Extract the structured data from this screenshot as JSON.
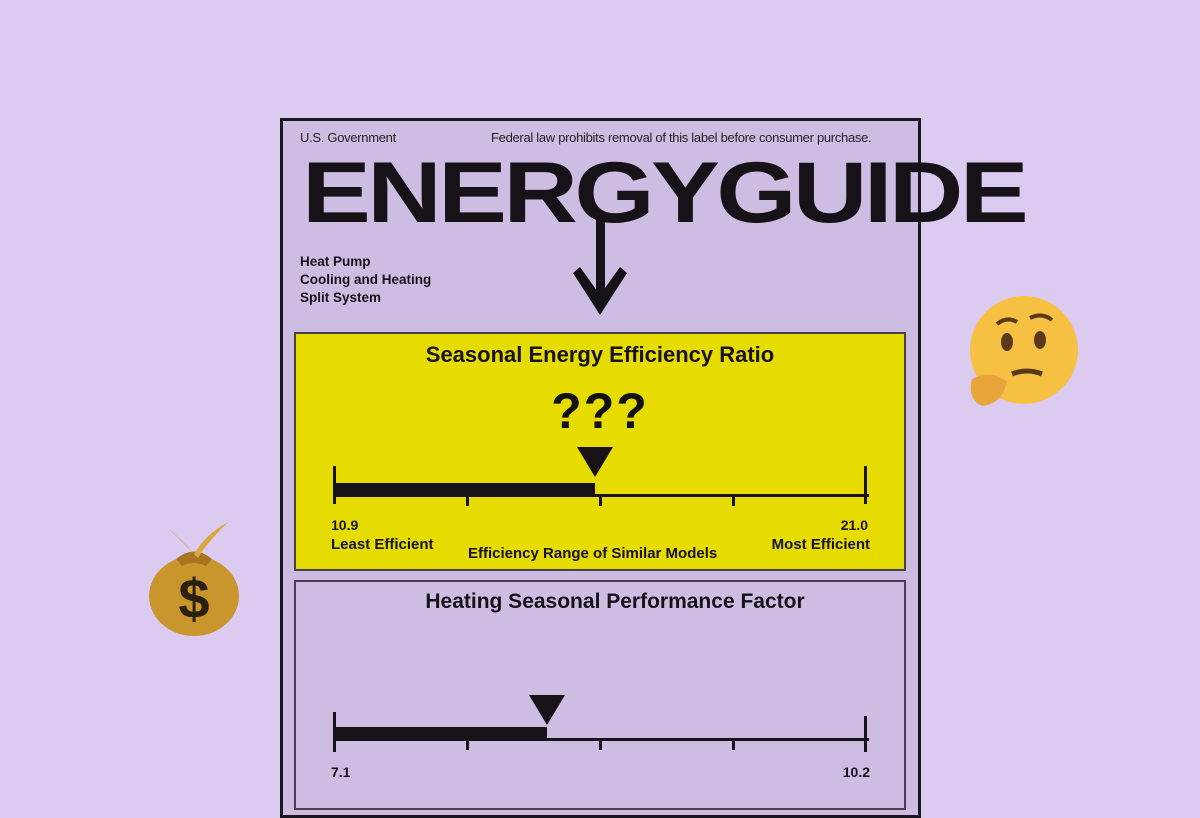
{
  "label": {
    "issuer": "U.S. Government",
    "notice": "Federal law prohibits removal of this  label before consumer purchase.",
    "title": "ENERGYGUIDE",
    "product_type": [
      "Heat Pump",
      "Cooling and Heating",
      "Split System"
    ]
  },
  "seer": {
    "title": "Seasonal Energy Efficiency Ratio",
    "value": "???",
    "min": "10.9",
    "max": "21.0",
    "min_label": "Least Efficient",
    "max_label": "Most Efficient",
    "range_label": "Efficiency Range of Similar Models",
    "marker_fraction": 0.49,
    "background": "#e6dc00"
  },
  "hspf": {
    "title": "Heating Seasonal Performance Factor",
    "min": "7.1",
    "max": "10.2",
    "marker_fraction": 0.4
  },
  "decorations": {
    "left": "money-bag-emoji",
    "right": "thinking-face-emoji"
  }
}
